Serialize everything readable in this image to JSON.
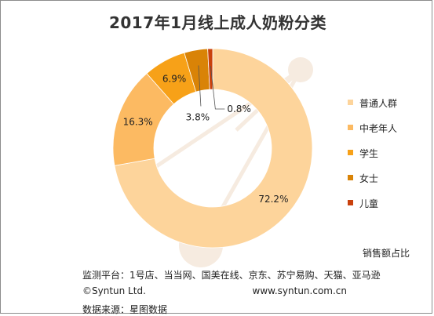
{
  "colors": {
    "series": [
      "#fdd49b",
      "#fcba62",
      "#f7a118",
      "#d98307",
      "#c9410d"
    ],
    "watermark": "#f6ebe0"
  },
  "chart_data": {
    "type": "pie",
    "donut": true,
    "title": "2017年1月线上成人奶粉分类",
    "categories": [
      "普通人群",
      "中老年人",
      "学生",
      "女士",
      "儿童"
    ],
    "values": [
      72.2,
      16.3,
      6.9,
      3.8,
      0.8
    ],
    "value_labels": [
      "72.2%",
      "16.3%",
      "6.9%",
      "3.8%",
      "0.8%"
    ],
    "legend_position": "right",
    "metric_label": "销售额占比"
  },
  "footer": {
    "platforms": "监测平台：1号店、当当网、国美在线、京东、苏宁易购、天猫、亚马逊",
    "copyright": "©Syntun Ltd.",
    "website": "www.syntun.com.cn",
    "source": "数据来源：星图数据"
  }
}
